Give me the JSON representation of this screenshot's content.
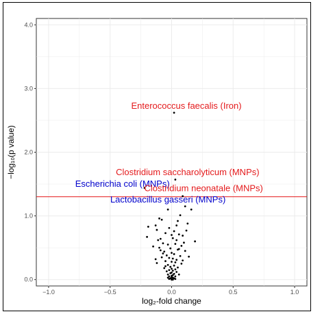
{
  "chart_data": {
    "type": "scatter",
    "xlabel": "log₂-fold change",
    "ylabel": "−log₁₀(p value)",
    "xlim": [
      -1.1,
      1.1
    ],
    "ylim": [
      -0.1,
      4.1
    ],
    "x_ticks": [
      -1.0,
      -0.5,
      0.0,
      0.5,
      1.0
    ],
    "x_tick_labels": [
      "−1.0",
      "−0.5",
      "0.0",
      "0.5",
      "1.0"
    ],
    "y_ticks": [
      0.0,
      1.0,
      2.0,
      3.0,
      4.0
    ],
    "y_tick_labels": [
      "0.0",
      "1.0",
      "2.0",
      "3.0",
      "4.0"
    ],
    "grid": true,
    "threshold": {
      "y": 1.3,
      "color": "#e41a1c"
    },
    "colors": {
      "up": "#e41a1c",
      "down": "#0000cc",
      "points": "#000000",
      "grid": "#ebebeb"
    },
    "annotations": [
      {
        "text": "Enterococcus faecalis (Iron)",
        "x": 0.12,
        "y": 2.68,
        "color": "#e41a1c"
      },
      {
        "text": "Clostridium saccharolyticum (MNPs)",
        "x": 0.13,
        "y": 1.64,
        "color": "#e41a1c"
      },
      {
        "text": "Escherichia coli (MNPs)",
        "x": -0.4,
        "y": 1.46,
        "color": "#0000cc"
      },
      {
        "text": "Clostridium neonatale (MNPs)",
        "x": 0.26,
        "y": 1.39,
        "color": "#e41a1c"
      },
      {
        "text": "Lactobacillus gasseri (MNPs)",
        "x": -0.03,
        "y": 1.21,
        "color": "#0000cc"
      }
    ],
    "points": [
      [
        0.02,
        2.62
      ],
      [
        0.03,
        1.57
      ],
      [
        -0.22,
        1.44
      ],
      [
        0.09,
        1.31
      ],
      [
        -0.03,
        1.1
      ],
      [
        0.07,
        1.01
      ],
      [
        0.11,
        1.15
      ],
      [
        0.16,
        1.1
      ],
      [
        -0.1,
        0.96
      ],
      [
        -0.08,
        0.94
      ],
      [
        0.05,
        0.92
      ],
      [
        0.13,
        0.88
      ],
      [
        -0.19,
        0.83
      ],
      [
        -0.13,
        0.85
      ],
      [
        -0.12,
        0.78
      ],
      [
        -0.05,
        0.73
      ],
      [
        0.02,
        0.76
      ],
      [
        0.06,
        0.71
      ],
      [
        0.09,
        0.69
      ],
      [
        -0.2,
        0.67
      ],
      [
        -0.09,
        0.64
      ],
      [
        0.01,
        0.65
      ],
      [
        0.04,
        0.62
      ],
      [
        0.19,
        0.6
      ],
      [
        -0.07,
        0.57
      ],
      [
        -0.03,
        0.55
      ],
      [
        0.03,
        0.56
      ],
      [
        0.08,
        0.53
      ],
      [
        -0.1,
        0.5
      ],
      [
        -0.01,
        0.49
      ],
      [
        0.05,
        0.47
      ],
      [
        0.11,
        0.45
      ],
      [
        -0.06,
        0.44
      ],
      [
        0.0,
        0.42
      ],
      [
        0.02,
        0.4
      ],
      [
        -0.04,
        0.38
      ],
      [
        0.07,
        0.37
      ],
      [
        -0.08,
        0.35
      ],
      [
        -0.02,
        0.34
      ],
      [
        0.01,
        0.33
      ],
      [
        0.04,
        0.31
      ],
      [
        -0.05,
        0.29
      ],
      [
        0.0,
        0.28
      ],
      [
        0.03,
        0.27
      ],
      [
        -0.12,
        0.26
      ],
      [
        0.08,
        0.25
      ],
      [
        -0.03,
        0.23
      ],
      [
        0.02,
        0.22
      ],
      [
        -0.01,
        0.2
      ],
      [
        0.05,
        0.19
      ],
      [
        -0.06,
        0.18
      ],
      [
        0.0,
        0.17
      ],
      [
        0.03,
        0.16
      ],
      [
        -0.02,
        0.15
      ],
      [
        0.01,
        0.14
      ],
      [
        -0.04,
        0.13
      ],
      [
        0.04,
        0.12
      ],
      [
        0.0,
        0.11
      ],
      [
        -0.01,
        0.1
      ],
      [
        0.02,
        0.09
      ],
      [
        -0.03,
        0.08
      ],
      [
        0.01,
        0.07
      ],
      [
        0.0,
        0.06
      ],
      [
        -0.02,
        0.05
      ],
      [
        0.03,
        0.05
      ],
      [
        0.0,
        0.04
      ],
      [
        0.01,
        0.03
      ],
      [
        -0.01,
        0.02
      ],
      [
        0.02,
        0.02
      ],
      [
        0.0,
        0.01
      ],
      [
        -0.02,
        0.01
      ],
      [
        0.01,
        0.0
      ],
      [
        0.0,
        0.0
      ],
      [
        0.03,
        0.01
      ],
      [
        -0.03,
        0.03
      ],
      [
        0.06,
        0.08
      ],
      [
        -0.05,
        0.21
      ],
      [
        0.09,
        0.3
      ],
      [
        -0.07,
        0.41
      ],
      [
        0.1,
        0.58
      ],
      [
        -0.11,
        0.62
      ],
      [
        0.0,
        0.7
      ],
      [
        0.12,
        0.77
      ],
      [
        -0.02,
        0.81
      ],
      [
        0.04,
        0.85
      ],
      [
        -0.15,
        0.52
      ],
      [
        0.06,
        0.48
      ],
      [
        -0.09,
        0.46
      ],
      [
        0.14,
        0.36
      ],
      [
        -0.13,
        0.32
      ]
    ]
  }
}
